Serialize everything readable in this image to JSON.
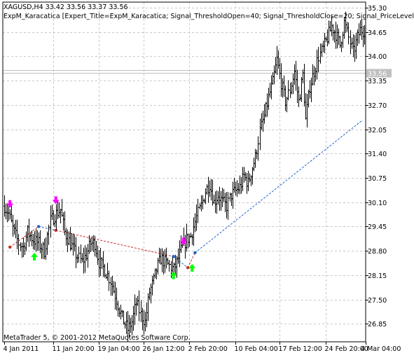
{
  "window": {
    "symbol_line": "XAGUSD,H4  33.42 33.56 33.37 33.56",
    "expert_line": "ExpM_Karacatica [Expert_Title=ExpM_Karacatica; Signal_ThresholdOpen=40; Signal_ThresholdClose=20; Signal_PriceLevel",
    "copyright": "MetaTrader 5, © 2001-2012 MetaQuotes Software Corp.",
    "current_price_label": "33.56"
  },
  "colors": {
    "background": "#ffffff",
    "grid": "#c8c8c8",
    "bars": "#000000",
    "up_arrow": "#00ff00",
    "down_arrow": "#ff00ff",
    "deal_line_blue": "#1e64c8",
    "deal_line_red": "#cc2a2a",
    "bid_line": "#c0c0c0",
    "price_tag_bg": "#c0c0c0"
  },
  "chart_data": {
    "type": "ohlc",
    "symbol": "XAGUSD",
    "timeframe": "H4",
    "y_tick_labels": [
      "35.30",
      "34.65",
      "34.00",
      "33.35",
      "32.70",
      "32.05",
      "31.40",
      "30.75",
      "30.10",
      "29.45",
      "28.80",
      "28.15",
      "27.50",
      "26.85"
    ],
    "y_ticks": [
      35.3,
      34.65,
      34.0,
      33.35,
      32.7,
      32.05,
      31.4,
      30.75,
      30.1,
      29.45,
      28.8,
      28.15,
      27.5,
      26.85
    ],
    "ylim": [
      26.37,
      35.45
    ],
    "x_tick_labels": [
      "4 Jan 2011",
      "11 Jan 20:00",
      "19 Jan 04:00",
      "26 Jan 12:00",
      "2 Feb 20:00",
      "10 Feb 04:00",
      "17 Feb 12:00",
      "24 Feb 20:00",
      "4 Mar 04:00"
    ],
    "current_price": 33.56,
    "price_anchors": [
      [
        0,
        30.0
      ],
      [
        3,
        29.8
      ],
      [
        6,
        29.4
      ],
      [
        10,
        29.0
      ],
      [
        13,
        28.9
      ],
      [
        16,
        29.3
      ],
      [
        20,
        29.1
      ],
      [
        24,
        29.0
      ],
      [
        28,
        28.8
      ],
      [
        32,
        29.6
      ],
      [
        36,
        29.8
      ],
      [
        39,
        29.9
      ],
      [
        42,
        29.3
      ],
      [
        46,
        29.0
      ],
      [
        50,
        28.7
      ],
      [
        54,
        28.5
      ],
      [
        57,
        28.7
      ],
      [
        60,
        29.0
      ],
      [
        63,
        29.0
      ],
      [
        66,
        28.5
      ],
      [
        70,
        28.3
      ],
      [
        74,
        28.0
      ],
      [
        78,
        27.5
      ],
      [
        82,
        27.0
      ],
      [
        86,
        26.7
      ],
      [
        89,
        26.9
      ],
      [
        92,
        27.4
      ],
      [
        95,
        27.1
      ],
      [
        98,
        26.9
      ],
      [
        101,
        27.7
      ],
      [
        104,
        28.0
      ],
      [
        106,
        28.3
      ],
      [
        109,
        28.6
      ],
      [
        112,
        28.5
      ],
      [
        115,
        28.4
      ],
      [
        118,
        28.3
      ],
      [
        121,
        28.6
      ],
      [
        124,
        28.9
      ],
      [
        127,
        29.1
      ],
      [
        130,
        29.2
      ],
      [
        134,
        29.7
      ],
      [
        137,
        30.0
      ],
      [
        140,
        30.4
      ],
      [
        143,
        30.6
      ],
      [
        146,
        30.1
      ],
      [
        149,
        30.3
      ],
      [
        152,
        30.1
      ],
      [
        155,
        30.0
      ],
      [
        158,
        30.3
      ],
      [
        161,
        30.4
      ],
      [
        164,
        30.5
      ],
      [
        167,
        30.8
      ],
      [
        170,
        30.6
      ],
      [
        172,
        30.9
      ],
      [
        175,
        31.3
      ],
      [
        178,
        32.0
      ],
      [
        181,
        32.4
      ],
      [
        184,
        32.9
      ],
      [
        187,
        33.3
      ],
      [
        190,
        33.9
      ],
      [
        193,
        33.3
      ],
      [
        196,
        32.8
      ],
      [
        199,
        33.1
      ],
      [
        202,
        33.6
      ],
      [
        205,
        32.8
      ],
      [
        208,
        33.5
      ],
      [
        210,
        32.3
      ],
      [
        213,
        33.2
      ],
      [
        216,
        33.6
      ],
      [
        219,
        34.0
      ],
      [
        222,
        34.2
      ],
      [
        225,
        34.5
      ],
      [
        228,
        34.8
      ],
      [
        231,
        34.6
      ],
      [
        234,
        34.3
      ],
      [
        237,
        34.9
      ],
      [
        240,
        34.5
      ],
      [
        243,
        34.1
      ],
      [
        246,
        34.5
      ],
      [
        248,
        34.7
      ]
    ],
    "signals": [
      {
        "type": "sell",
        "bar": 4,
        "price": 29.95
      },
      {
        "type": "buy",
        "bar": 21,
        "price": 28.75
      },
      {
        "type": "sell",
        "bar": 36,
        "price": 30.05
      },
      {
        "type": "buy",
        "bar": 118,
        "price": 28.25
      },
      {
        "type": "sell",
        "bar": 125,
        "price": 28.95
      },
      {
        "type": "buy",
        "bar": 131,
        "price": 28.45
      }
    ],
    "deals": [
      {
        "x1_bar": 4,
        "y1": 28.9,
        "x2_bar": 24,
        "y2": 29.45,
        "color": "red"
      },
      {
        "x1_bar": 24,
        "y1": 29.45,
        "x2_bar": 36,
        "y2": 29.35,
        "color": "blue"
      },
      {
        "x1_bar": 36,
        "y1": 29.35,
        "x2_bar": 118,
        "y2": 28.65,
        "color": "red"
      },
      {
        "x1_bar": 118,
        "y1": 28.65,
        "x2_bar": 128,
        "y2": 28.35,
        "color": "blue"
      },
      {
        "x1_bar": 128,
        "y1": 28.35,
        "x2_bar": 133,
        "y2": 28.75,
        "color": "red"
      },
      {
        "x1_bar": 133,
        "y1": 28.75,
        "x2_bar": 250,
        "y2": 32.3,
        "color": "blue"
      }
    ]
  }
}
